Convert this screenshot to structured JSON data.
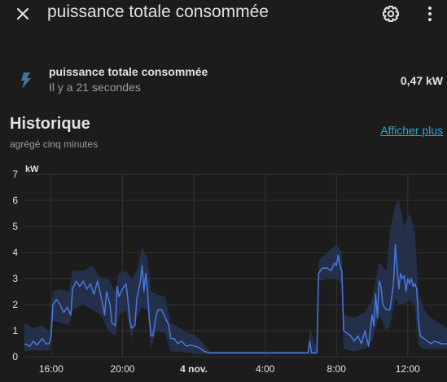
{
  "dialog": {
    "title": "puissance totale consommée",
    "close_icon": "close-icon",
    "settings_icon": "gear-icon",
    "menu_icon": "more-vertical-icon"
  },
  "entity": {
    "icon": "lightning-bolt-icon",
    "name": "puissance totale consommée",
    "last_changed": "Il y a 21 secondes",
    "state": "0,47 kW"
  },
  "history": {
    "title": "Historique",
    "subtitle": "agrégé cinq minutes",
    "show_more": "Afficher plus"
  },
  "colors": {
    "background": "#1c1c1c",
    "line": "#4a78e0",
    "band": "#26324f",
    "link": "#2aa3d6"
  },
  "chart_data": {
    "type": "line",
    "ylabel": "kW",
    "ylim": [
      0,
      7
    ],
    "yticks": [
      "0",
      "1",
      "2",
      "3",
      "4",
      "5",
      "6",
      "7"
    ],
    "xticks": [
      {
        "label": "16:00",
        "hour": 16,
        "bold": false
      },
      {
        "label": "20:00",
        "hour": 20,
        "bold": false
      },
      {
        "label": "4 nov.",
        "hour": 24,
        "bold": true
      },
      {
        "label": "4:00",
        "hour": 28,
        "bold": false
      },
      {
        "label": "8:00",
        "hour": 32,
        "bold": false
      },
      {
        "label": "12:00",
        "hour": 36,
        "bold": false
      }
    ],
    "xlim": [
      14.5,
      38.2
    ],
    "grid": true,
    "series": [
      {
        "points": [
          [
            14.5,
            0.5
          ],
          [
            14.8,
            0.4
          ],
          [
            15,
            0.6
          ],
          [
            15.2,
            0.45
          ],
          [
            15.5,
            0.7
          ],
          [
            15.7,
            0.5
          ],
          [
            15.9,
            0.5
          ],
          [
            16.0,
            0.8
          ],
          [
            16.1,
            2.0
          ],
          [
            16.3,
            2.2
          ],
          [
            16.5,
            2.0
          ],
          [
            16.7,
            1.7
          ],
          [
            16.9,
            1.9
          ],
          [
            17.1,
            1.6
          ],
          [
            17.2,
            2.6
          ],
          [
            17.4,
            2.9
          ],
          [
            17.6,
            2.7
          ],
          [
            17.8,
            2.9
          ],
          [
            18.0,
            2.6
          ],
          [
            18.2,
            2.8
          ],
          [
            18.4,
            2.4
          ],
          [
            18.6,
            2.9
          ],
          [
            18.8,
            2.3
          ],
          [
            19.0,
            1.6
          ],
          [
            19.1,
            2.5
          ],
          [
            19.3,
            2.0
          ],
          [
            19.4,
            1.3
          ],
          [
            19.6,
            1.2
          ],
          [
            19.7,
            2.7
          ],
          [
            19.8,
            2.3
          ],
          [
            20.0,
            2.6
          ],
          [
            20.2,
            2.8
          ],
          [
            20.3,
            2.2
          ],
          [
            20.4,
            1.5
          ],
          [
            20.5,
            1.1
          ],
          [
            20.7,
            1.2
          ],
          [
            20.8,
            2.2
          ],
          [
            21.0,
            2.9
          ],
          [
            21.1,
            3.5
          ],
          [
            21.2,
            2.5
          ],
          [
            21.3,
            3.2
          ],
          [
            21.4,
            2.6
          ],
          [
            21.5,
            1.5
          ],
          [
            21.6,
            0.8
          ],
          [
            21.7,
            0.8
          ],
          [
            21.9,
            1.6
          ],
          [
            22.0,
            1.8
          ],
          [
            22.2,
            1.8
          ],
          [
            22.4,
            1.5
          ],
          [
            22.6,
            1.2
          ],
          [
            22.7,
            0.7
          ],
          [
            22.9,
            0.7
          ],
          [
            23.1,
            0.5
          ],
          [
            23.3,
            0.6
          ],
          [
            23.6,
            0.4
          ],
          [
            23.8,
            0.45
          ],
          [
            24.1,
            0.4
          ],
          [
            24.3,
            0.35
          ],
          [
            24.6,
            0.2
          ],
          [
            24.9,
            0.15
          ],
          [
            26,
            0.15
          ],
          [
            27,
            0.15
          ],
          [
            28,
            0.15
          ],
          [
            29,
            0.15
          ],
          [
            30,
            0.15
          ],
          [
            30.4,
            0.15
          ],
          [
            30.5,
            0.6
          ],
          [
            30.6,
            0.15
          ],
          [
            30.9,
            0.15
          ],
          [
            31.0,
            3.2
          ],
          [
            31.2,
            3.4
          ],
          [
            31.5,
            3.4
          ],
          [
            31.7,
            3.3
          ],
          [
            31.9,
            3.6
          ],
          [
            32.0,
            3.5
          ],
          [
            32.1,
            3.9
          ],
          [
            32.2,
            3.5
          ],
          [
            32.3,
            3.3
          ],
          [
            32.4,
            1.0
          ],
          [
            32.6,
            0.9
          ],
          [
            32.8,
            0.8
          ],
          [
            33.0,
            0.6
          ],
          [
            33.2,
            0.8
          ],
          [
            33.4,
            0.5
          ],
          [
            33.6,
            1.0
          ],
          [
            33.8,
            0.4
          ],
          [
            34.0,
            1.6
          ],
          [
            34.1,
            1.2
          ],
          [
            34.2,
            2.4
          ],
          [
            34.3,
            1.5
          ],
          [
            34.4,
            2.9
          ],
          [
            34.5,
            2.7
          ],
          [
            34.6,
            2.0
          ],
          [
            34.8,
            1.8
          ],
          [
            35.0,
            1.8
          ],
          [
            35.1,
            2.3
          ],
          [
            35.2,
            2.8
          ],
          [
            35.3,
            4.3
          ],
          [
            35.4,
            3.4
          ],
          [
            35.5,
            2.6
          ],
          [
            35.6,
            3.2
          ],
          [
            35.7,
            3.0
          ],
          [
            35.8,
            3.1
          ],
          [
            35.9,
            2.5
          ],
          [
            36.0,
            3.0
          ],
          [
            36.1,
            2.8
          ],
          [
            36.2,
            3.0
          ],
          [
            36.3,
            2.7
          ],
          [
            36.4,
            2.8
          ],
          [
            36.5,
            2.6
          ],
          [
            36.6,
            1.4
          ],
          [
            36.7,
            0.8
          ],
          [
            36.9,
            0.7
          ],
          [
            37.1,
            0.6
          ],
          [
            37.3,
            0.5
          ],
          [
            37.5,
            0.6
          ],
          [
            37.7,
            0.55
          ],
          [
            37.9,
            0.5
          ],
          [
            38.2,
            0.5
          ]
        ],
        "band_upper": [
          [
            14.5,
            1.3
          ],
          [
            15,
            1.1
          ],
          [
            15.5,
            1.2
          ],
          [
            15.9,
            1.0
          ],
          [
            16.1,
            2.5
          ],
          [
            16.5,
            2.6
          ],
          [
            17.0,
            2.5
          ],
          [
            17.2,
            3.3
          ],
          [
            17.8,
            3.3
          ],
          [
            18.3,
            3.5
          ],
          [
            18.8,
            3.0
          ],
          [
            19.2,
            3.0
          ],
          [
            19.6,
            2.5
          ],
          [
            19.8,
            3.2
          ],
          [
            20.2,
            3.3
          ],
          [
            20.5,
            3.0
          ],
          [
            20.8,
            3.3
          ],
          [
            21.1,
            4.2
          ],
          [
            21.4,
            3.8
          ],
          [
            21.6,
            2.5
          ],
          [
            21.9,
            2.4
          ],
          [
            22.4,
            2.3
          ],
          [
            22.7,
            1.3
          ],
          [
            23.2,
            1.1
          ],
          [
            23.8,
            0.9
          ],
          [
            24.3,
            0.7
          ],
          [
            24.9,
            0.2
          ],
          [
            30.4,
            0.2
          ],
          [
            30.5,
            1.1
          ],
          [
            30.9,
            0.3
          ],
          [
            31.0,
            3.7
          ],
          [
            31.5,
            4.0
          ],
          [
            32.0,
            4.3
          ],
          [
            32.3,
            4.0
          ],
          [
            32.4,
            1.6
          ],
          [
            33.0,
            1.5
          ],
          [
            33.6,
            1.7
          ],
          [
            34.0,
            2.2
          ],
          [
            34.4,
            3.6
          ],
          [
            34.8,
            3.3
          ],
          [
            35.0,
            4.8
          ],
          [
            35.3,
            5.8
          ],
          [
            35.5,
            6.0
          ],
          [
            35.8,
            5.0
          ],
          [
            36.1,
            5.5
          ],
          [
            36.4,
            4.8
          ],
          [
            36.6,
            2.5
          ],
          [
            36.9,
            1.8
          ],
          [
            37.3,
            1.5
          ],
          [
            37.7,
            1.3
          ],
          [
            38.2,
            1.1
          ]
        ],
        "band_lower": [
          [
            14.5,
            0.2
          ],
          [
            15,
            0.25
          ],
          [
            15.9,
            0.25
          ],
          [
            16.1,
            1.4
          ],
          [
            16.5,
            1.3
          ],
          [
            17.0,
            1.2
          ],
          [
            17.2,
            1.8
          ],
          [
            17.8,
            2.0
          ],
          [
            18.3,
            1.8
          ],
          [
            18.8,
            1.6
          ],
          [
            19.2,
            1.0
          ],
          [
            19.6,
            0.8
          ],
          [
            19.8,
            1.6
          ],
          [
            20.2,
            1.8
          ],
          [
            20.5,
            0.7
          ],
          [
            20.8,
            1.5
          ],
          [
            21.1,
            1.9
          ],
          [
            21.4,
            1.8
          ],
          [
            21.6,
            0.3
          ],
          [
            21.9,
            1.0
          ],
          [
            22.4,
            0.9
          ],
          [
            22.7,
            0.2
          ],
          [
            23.2,
            0.2
          ],
          [
            24.3,
            0.1
          ],
          [
            24.9,
            0.1
          ],
          [
            30.4,
            0.1
          ],
          [
            30.9,
            0.1
          ],
          [
            31.0,
            2.9
          ],
          [
            31.5,
            3.0
          ],
          [
            32.0,
            3.0
          ],
          [
            32.3,
            2.8
          ],
          [
            32.4,
            0.3
          ],
          [
            33.0,
            0.2
          ],
          [
            33.6,
            0.3
          ],
          [
            34.0,
            0.6
          ],
          [
            34.4,
            1.6
          ],
          [
            34.8,
            1.0
          ],
          [
            35.0,
            1.2
          ],
          [
            35.3,
            2.2
          ],
          [
            35.5,
            2.0
          ],
          [
            35.8,
            2.0
          ],
          [
            36.1,
            2.2
          ],
          [
            36.4,
            1.9
          ],
          [
            36.6,
            0.4
          ],
          [
            36.9,
            0.3
          ],
          [
            37.3,
            0.3
          ],
          [
            37.7,
            0.3
          ],
          [
            38.2,
            0.3
          ]
        ]
      }
    ]
  }
}
